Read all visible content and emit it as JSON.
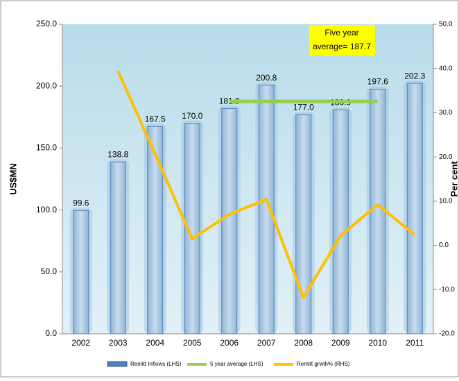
{
  "chart_data": {
    "type": "bar",
    "annotation": [
      "Five year",
      "average= 187.7"
    ],
    "ylabel": "US$MN",
    "y2label": "Per cent",
    "categories": [
      "2002",
      "2003",
      "2004",
      "2005",
      "2006",
      "2007",
      "2008",
      "2009",
      "2010",
      "2011"
    ],
    "series": [
      {
        "name": "Remitt Inflows (LHS)",
        "type": "bar",
        "color": "#4f81bd",
        "values": [
          99.6,
          138.8,
          167.5,
          170.0,
          181.9,
          200.8,
          177.0,
          180.9,
          197.6,
          202.3
        ],
        "value_labels": [
          "99.6",
          "138.8",
          "167.5",
          "170.0",
          "181.9",
          "200.8",
          "177.0",
          "180.9",
          "197.6",
          "202.3"
        ]
      },
      {
        "name": "5 year average (LHS)",
        "type": "line",
        "color": "#92d050",
        "values": [
          null,
          null,
          null,
          null,
          187.7,
          187.7,
          187.7,
          187.7,
          187.7,
          null
        ]
      },
      {
        "name": "Remitt grwth% (RHS)",
        "type": "line",
        "axis": "y2",
        "color": "#ffc000",
        "values": [
          null,
          39.4,
          20.7,
          1.5,
          7.0,
          10.4,
          -11.8,
          2.2,
          9.2,
          2.4
        ]
      }
    ],
    "ylim": [
      0,
      250
    ],
    "yticks": [
      {
        "value": 0,
        "label": "0.0"
      },
      {
        "value": 50,
        "label": "50.0"
      },
      {
        "value": 100,
        "label": "100.0"
      },
      {
        "value": 150,
        "label": "150.0"
      },
      {
        "value": 200,
        "label": "200.0"
      },
      {
        "value": 250,
        "label": "250.0"
      }
    ],
    "y2lim": [
      -20,
      50
    ],
    "y2ticks": [
      {
        "value": -20,
        "label": "-20.0"
      },
      {
        "value": -10,
        "label": "-10.0"
      },
      {
        "value": 0,
        "label": "0.0"
      },
      {
        "value": 10,
        "label": "10.0"
      },
      {
        "value": 20,
        "label": "20.0"
      },
      {
        "value": 30,
        "label": "30.0"
      },
      {
        "value": 40,
        "label": "40.0"
      },
      {
        "value": 50,
        "label": "50.0"
      }
    ]
  }
}
